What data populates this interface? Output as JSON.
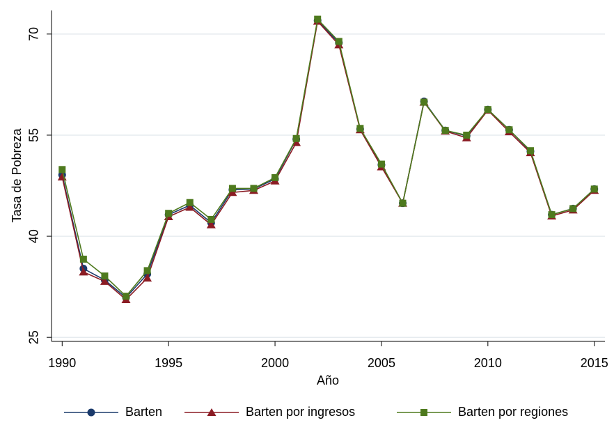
{
  "chart_data": {
    "type": "line",
    "y_label": "Tasa de Pobreza",
    "x_label": "Año",
    "x": [
      1990,
      1991,
      1992,
      1993,
      1994,
      1995,
      1996,
      1997,
      1998,
      1999,
      2000,
      2001,
      2002,
      2003,
      2004,
      2005,
      2006,
      2007,
      2008,
      2009,
      2010,
      2011,
      2012,
      2013,
      2014,
      2015
    ],
    "series": [
      {
        "name": "Barten",
        "color": "#1a3a6b",
        "marker": "circle",
        "values": [
          49.1,
          35.2,
          33.5,
          30.9,
          34.4,
          43.2,
          44.6,
          42.0,
          46.9,
          47.0,
          48.5,
          54.4,
          72.0,
          68.7,
          55.9,
          50.6,
          44.9,
          60.0,
          55.7,
          54.9,
          58.8,
          55.8,
          52.6,
          43.2,
          44.1,
          47.0
        ]
      },
      {
        "name": "Barten por ingresos",
        "color": "#8b1c24",
        "marker": "triangle",
        "values": [
          48.8,
          34.7,
          33.3,
          30.6,
          33.8,
          42.9,
          44.3,
          41.7,
          46.5,
          46.8,
          48.2,
          53.9,
          71.9,
          68.4,
          55.8,
          50.3,
          44.9,
          59.9,
          55.6,
          54.6,
          58.7,
          55.5,
          52.4,
          43.0,
          43.9,
          46.8
        ]
      },
      {
        "name": "Barten por regiones",
        "color": "#4e7a1e",
        "marker": "square",
        "values": [
          49.9,
          36.6,
          34.1,
          31.1,
          34.9,
          43.4,
          45.0,
          42.5,
          47.1,
          47.1,
          48.7,
          54.5,
          72.2,
          68.9,
          56.0,
          50.7,
          44.9,
          59.9,
          55.7,
          55.0,
          58.8,
          55.8,
          52.7,
          43.2,
          44.1,
          47.0
        ]
      }
    ],
    "xlim": [
      1989.5,
      2015.5
    ],
    "xticks": [
      1990,
      1995,
      2000,
      2005,
      2010,
      2015
    ],
    "ylim": [
      24.4,
      73.5
    ],
    "yticks": [
      25,
      40,
      55,
      70
    ],
    "grid": true,
    "legend": "bottom"
  }
}
